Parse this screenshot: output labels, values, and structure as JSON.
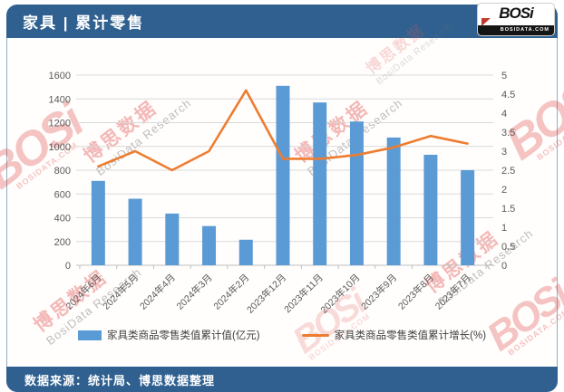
{
  "header": {
    "title": "家具 | 累计零售",
    "logo_text": "BOSi",
    "logo_domain": "BOSIDATA.COM"
  },
  "footer": {
    "source": "数据来源：统计局、博思数据整理"
  },
  "watermarks": {
    "brand_cn": "博思数据",
    "brand_en": "BosiData Research",
    "logo_text": "BOSi",
    "logo_domain": "BOSIDATA.COM"
  },
  "chart_data": {
    "type": "bar",
    "subtype": "bar+line dual-axis combo",
    "title": "家具 | 累计零售",
    "categories": [
      "2024年6月",
      "2024年5月",
      "2024年4月",
      "2024年3月",
      "2024年2月",
      "2023年12月",
      "2023年11月",
      "2023年10月",
      "2023年9月",
      "2023年8月",
      "2023年7月"
    ],
    "series": [
      {
        "name": "家具类商品零售类值累计值(亿元)",
        "type": "bar",
        "axis": "left",
        "color": "#5B9BD5",
        "values": [
          710,
          560,
          435,
          330,
          215,
          1510,
          1370,
          1210,
          1075,
          930,
          800
        ]
      },
      {
        "name": "家具类商品零售类值累计增长(%)",
        "type": "line",
        "axis": "right",
        "color": "#ED7D31",
        "values": [
          2.6,
          3.0,
          2.5,
          3.0,
          4.6,
          2.8,
          2.8,
          2.9,
          3.1,
          3.4,
          3.2
        ]
      }
    ],
    "left_axis": {
      "min": 0,
      "max": 1600,
      "step": 200
    },
    "right_axis": {
      "min": 0,
      "max": 5,
      "step": 0.5
    },
    "grid": true,
    "legend_position": "bottom",
    "x_label_rotation": -45
  }
}
